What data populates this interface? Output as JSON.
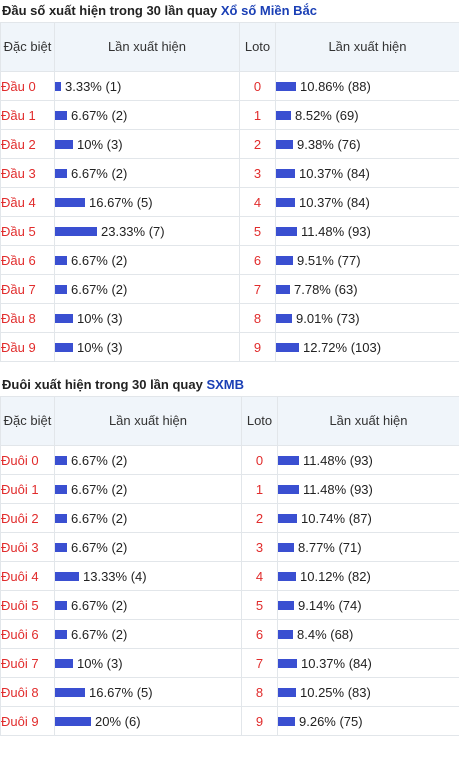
{
  "dau": {
    "title_prefix": "Đầu số xuất hiện trong 30 lần quay",
    "title_link": "Xổ số Miền Bắc",
    "headers": {
      "col1": "Đặc biệt",
      "col2": "Lần xuất hiện",
      "col3": "Loto",
      "col4": "Lần xuất hiện"
    },
    "rows": [
      {
        "label": "Đầu 0",
        "db_pct": 3.33,
        "db_text": "3.33% (1)",
        "loto": "0",
        "loto_pct": 10.86,
        "loto_text": "10.86% (88)"
      },
      {
        "label": "Đầu 1",
        "db_pct": 6.67,
        "db_text": "6.67% (2)",
        "loto": "1",
        "loto_pct": 8.52,
        "loto_text": "8.52% (69)"
      },
      {
        "label": "Đầu 2",
        "db_pct": 10,
        "db_text": "10% (3)",
        "loto": "2",
        "loto_pct": 9.38,
        "loto_text": "9.38% (76)"
      },
      {
        "label": "Đầu 3",
        "db_pct": 6.67,
        "db_text": "6.67% (2)",
        "loto": "3",
        "loto_pct": 10.37,
        "loto_text": "10.37% (84)"
      },
      {
        "label": "Đầu 4",
        "db_pct": 16.67,
        "db_text": "16.67% (5)",
        "loto": "4",
        "loto_pct": 10.37,
        "loto_text": "10.37% (84)"
      },
      {
        "label": "Đầu 5",
        "db_pct": 23.33,
        "db_text": "23.33% (7)",
        "loto": "5",
        "loto_pct": 11.48,
        "loto_text": "11.48% (93)"
      },
      {
        "label": "Đầu 6",
        "db_pct": 6.67,
        "db_text": "6.67% (2)",
        "loto": "6",
        "loto_pct": 9.51,
        "loto_text": "9.51% (77)"
      },
      {
        "label": "Đầu 7",
        "db_pct": 6.67,
        "db_text": "6.67% (2)",
        "loto": "7",
        "loto_pct": 7.78,
        "loto_text": "7.78% (63)"
      },
      {
        "label": "Đầu 8",
        "db_pct": 10,
        "db_text": "10% (3)",
        "loto": "8",
        "loto_pct": 9.01,
        "loto_text": "9.01% (73)"
      },
      {
        "label": "Đầu 9",
        "db_pct": 10,
        "db_text": "10% (3)",
        "loto": "9",
        "loto_pct": 12.72,
        "loto_text": "12.72% (103)"
      }
    ]
  },
  "duoi": {
    "title_prefix": "Đuôi xuất hiện trong 30 lần quay",
    "title_link": "SXMB",
    "headers": {
      "col1": "Đặc biệt",
      "col2": "Lần xuất hiện",
      "col3": "Loto",
      "col4": "Lần xuất hiện"
    },
    "rows": [
      {
        "label": "Đuôi 0",
        "db_pct": 6.67,
        "db_text": "6.67% (2)",
        "loto": "0",
        "loto_pct": 11.48,
        "loto_text": "11.48% (93)"
      },
      {
        "label": "Đuôi 1",
        "db_pct": 6.67,
        "db_text": "6.67% (2)",
        "loto": "1",
        "loto_pct": 11.48,
        "loto_text": "11.48% (93)"
      },
      {
        "label": "Đuôi 2",
        "db_pct": 6.67,
        "db_text": "6.67% (2)",
        "loto": "2",
        "loto_pct": 10.74,
        "loto_text": "10.74% (87)"
      },
      {
        "label": "Đuôi 3",
        "db_pct": 6.67,
        "db_text": "6.67% (2)",
        "loto": "3",
        "loto_pct": 8.77,
        "loto_text": "8.77% (71)"
      },
      {
        "label": "Đuôi 4",
        "db_pct": 13.33,
        "db_text": "13.33% (4)",
        "loto": "4",
        "loto_pct": 10.12,
        "loto_text": "10.12% (82)"
      },
      {
        "label": "Đuôi 5",
        "db_pct": 6.67,
        "db_text": "6.67% (2)",
        "loto": "5",
        "loto_pct": 9.14,
        "loto_text": "9.14% (74)"
      },
      {
        "label": "Đuôi 6",
        "db_pct": 6.67,
        "db_text": "6.67% (2)",
        "loto": "6",
        "loto_pct": 8.4,
        "loto_text": "8.4% (68)"
      },
      {
        "label": "Đuôi 7",
        "db_pct": 10,
        "db_text": "10% (3)",
        "loto": "7",
        "loto_pct": 10.37,
        "loto_text": "10.37% (84)"
      },
      {
        "label": "Đuôi 8",
        "db_pct": 16.67,
        "db_text": "16.67% (5)",
        "loto": "8",
        "loto_pct": 10.25,
        "loto_text": "10.25% (83)"
      },
      {
        "label": "Đuôi 9",
        "db_pct": 20,
        "db_text": "20% (6)",
        "loto": "9",
        "loto_pct": 9.26,
        "loto_text": "9.26% (75)"
      }
    ]
  },
  "colors": {
    "bar": "#3a4fd1",
    "label_red": "#e12c2c",
    "link_blue": "#1a3fb5",
    "header_bg": "#f0f5fa"
  }
}
